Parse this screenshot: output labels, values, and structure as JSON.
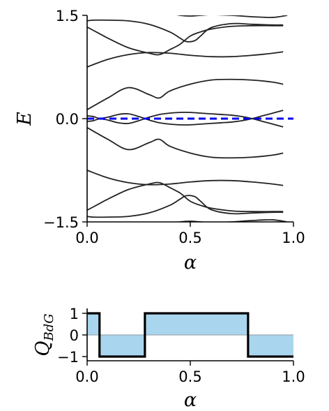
{
  "chart_data": [
    {
      "type": "line",
      "title": "",
      "xlabel": "α",
      "ylabel": "E",
      "xlim": [
        0.0,
        1.0
      ],
      "ylim": [
        -1.5,
        1.5
      ],
      "xticks": [
        "0.0",
        "0.5",
        "1.0"
      ],
      "yticks": [
        "−1.5",
        "0.0",
        "1.5"
      ],
      "grid": false,
      "line_color": "#222222",
      "series": [
        {
          "x": [
            0.0,
            0.03,
            0.06,
            0.1,
            0.15,
            0.2,
            0.25,
            0.3,
            0.35,
            0.4,
            0.45,
            0.5,
            0.55,
            0.6,
            0.65,
            0.7,
            0.75,
            0.8,
            0.85,
            0.9,
            0.95
          ],
          "y": [
            0.04,
            0.03,
            0.0,
            -0.02,
            -0.06,
            -0.07,
            -0.03,
            0.02,
            0.06,
            0.08,
            0.09,
            0.09,
            0.08,
            0.07,
            0.06,
            0.05,
            0.03,
            0.0,
            -0.04,
            -0.08,
            -0.12
          ]
        },
        {
          "x": [
            0.0,
            0.03,
            0.06,
            0.1,
            0.15,
            0.2,
            0.25,
            0.3,
            0.35,
            0.4,
            0.45,
            0.5,
            0.55,
            0.6,
            0.65,
            0.7,
            0.75,
            0.8,
            0.85,
            0.9,
            0.95
          ],
          "y": [
            -0.04,
            -0.03,
            0.0,
            0.02,
            0.06,
            0.07,
            0.03,
            -0.02,
            -0.06,
            -0.08,
            -0.09,
            -0.09,
            -0.08,
            -0.07,
            -0.06,
            -0.05,
            -0.03,
            0.0,
            0.04,
            0.08,
            0.12
          ]
        },
        {
          "x": [
            0.0,
            0.1,
            0.2,
            0.3,
            0.35,
            0.4,
            0.5,
            0.6,
            0.7,
            0.8,
            0.9,
            0.95
          ],
          "y": [
            0.13,
            0.3,
            0.45,
            0.35,
            0.3,
            0.4,
            0.5,
            0.56,
            0.57,
            0.56,
            0.53,
            0.5
          ]
        },
        {
          "x": [
            0.0,
            0.1,
            0.2,
            0.3,
            0.35,
            0.4,
            0.5,
            0.6,
            0.7,
            0.8,
            0.9,
            0.95
          ],
          "y": [
            -0.13,
            -0.3,
            -0.45,
            -0.35,
            -0.3,
            -0.4,
            -0.5,
            -0.56,
            -0.57,
            -0.56,
            -0.53,
            -0.5
          ]
        },
        {
          "x": [
            0.0,
            0.1,
            0.2,
            0.3,
            0.4,
            0.5,
            0.6,
            0.7,
            0.8,
            0.9,
            0.95
          ],
          "y": [
            0.75,
            0.86,
            0.93,
            0.96,
            0.95,
            0.92,
            0.9,
            0.9,
            0.92,
            0.95,
            0.97
          ]
        },
        {
          "x": [
            0.0,
            0.1,
            0.2,
            0.3,
            0.4,
            0.5,
            0.6,
            0.7,
            0.8,
            0.9,
            0.95
          ],
          "y": [
            -0.75,
            -0.86,
            -0.93,
            -0.96,
            -0.95,
            -0.92,
            -0.9,
            -0.9,
            -0.92,
            -0.95,
            -0.97
          ]
        },
        {
          "x": [
            0.0,
            0.05,
            0.1,
            0.2,
            0.3,
            0.35,
            0.4,
            0.45,
            0.5,
            0.55,
            0.6,
            0.7,
            0.8,
            0.9,
            0.95
          ],
          "y": [
            1.33,
            1.25,
            1.17,
            1.03,
            0.95,
            0.93,
            1.0,
            1.08,
            1.2,
            1.26,
            1.3,
            1.34,
            1.35,
            1.35,
            1.35
          ]
        },
        {
          "x": [
            0.0,
            0.05,
            0.1,
            0.2,
            0.3,
            0.35,
            0.4,
            0.45,
            0.5,
            0.55,
            0.6,
            0.7,
            0.8,
            0.9,
            0.95
          ],
          "y": [
            -1.33,
            -1.25,
            -1.17,
            -1.03,
            -0.95,
            -0.93,
            -1.0,
            -1.08,
            -1.2,
            -1.26,
            -1.3,
            -1.34,
            -1.35,
            -1.35,
            -1.35
          ]
        },
        {
          "x": [
            0.0,
            0.03,
            0.1,
            0.2,
            0.3,
            0.4,
            0.45,
            0.48,
            0.52,
            0.55,
            0.6,
            0.7,
            0.8,
            0.9,
            0.95
          ],
          "y": [
            1.42,
            1.43,
            1.43,
            1.42,
            1.37,
            1.26,
            1.17,
            1.12,
            1.13,
            1.2,
            1.32,
            1.38,
            1.37,
            1.36,
            1.36
          ]
        },
        {
          "x": [
            0.0,
            0.03,
            0.1,
            0.2,
            0.3,
            0.4,
            0.45,
            0.48,
            0.52,
            0.55,
            0.6,
            0.7,
            0.8,
            0.9,
            0.95
          ],
          "y": [
            -1.42,
            -1.43,
            -1.43,
            -1.42,
            -1.37,
            -1.26,
            -1.17,
            -1.12,
            -1.13,
            -1.2,
            -1.32,
            -1.38,
            -1.37,
            -1.36,
            -1.36
          ]
        },
        {
          "x": [
            0.35,
            0.4,
            0.45,
            0.5,
            0.55,
            0.6,
            0.7,
            0.8,
            0.9,
            0.97
          ],
          "y": [
            1.55,
            1.53,
            1.5,
            1.49,
            1.5,
            1.51,
            1.5,
            1.48,
            1.47,
            1.5
          ]
        },
        {
          "x": [
            0.35,
            0.4,
            0.45,
            0.5,
            0.55,
            0.6,
            0.7,
            0.8,
            0.9,
            0.97
          ],
          "y": [
            -1.55,
            -1.53,
            -1.5,
            -1.49,
            -1.5,
            -1.51,
            -1.5,
            -1.48,
            -1.47,
            -1.5
          ]
        }
      ],
      "reference_line": {
        "y": 0.0,
        "color": "#0000ee",
        "style": "dashed"
      }
    },
    {
      "type": "area",
      "title": "",
      "xlabel": "α",
      "ylabel": "Q_BdG",
      "ylabel_main": "Q",
      "ylabel_sub": "BdG",
      "xlim": [
        0.0,
        1.0
      ],
      "ylim": [
        -1.0,
        1.0
      ],
      "xticks": [
        "0.0",
        "0.5",
        "1.0"
      ],
      "yticks": [
        "1",
        "0",
        "−1"
      ],
      "grid": false,
      "fill_color": "#a9d6ee",
      "line_color": "#000000",
      "zero_line_color": "#9aaab3",
      "series": [
        {
          "x": [
            0.0,
            0.06,
            0.06,
            0.28,
            0.28,
            0.78,
            0.78,
            1.0
          ],
          "y": [
            1,
            1,
            -1,
            -1,
            1,
            1,
            -1,
            -1
          ]
        }
      ]
    }
  ]
}
